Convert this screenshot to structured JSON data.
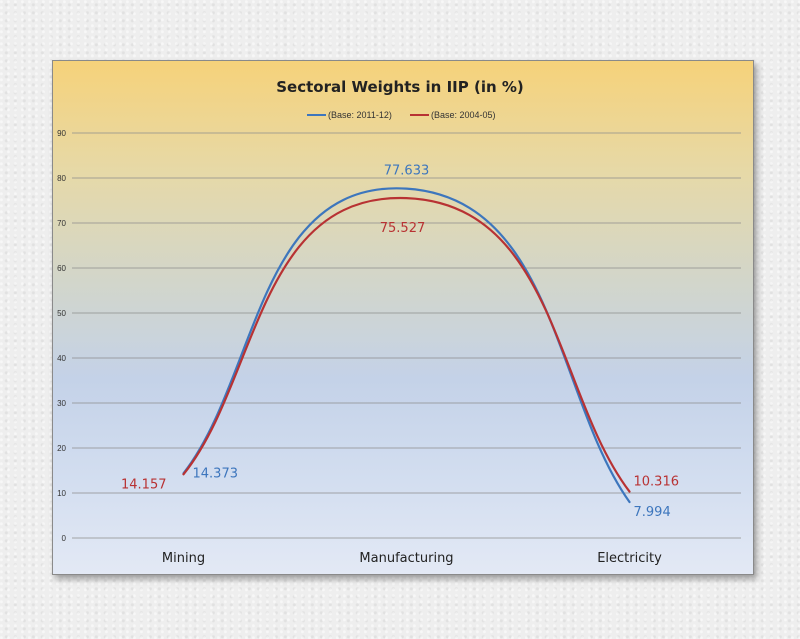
{
  "chart_data": {
    "type": "line",
    "title": "Sectoral Weights in IIP (in %)",
    "categories": [
      "Mining",
      "Manufacturing",
      "Electricity"
    ],
    "series": [
      {
        "name": "(Base: 2011-12)",
        "values": [
          14.373,
          77.633,
          7.994
        ],
        "color": "#3d76bd"
      },
      {
        "name": "(Base: 2004-05)",
        "values": [
          14.157,
          75.527,
          10.316
        ],
        "color": "#b83233"
      }
    ],
    "data_labels": [
      [
        "14.373",
        "77.633",
        "7.994"
      ],
      [
        "14.157",
        "75.527",
        "10.316"
      ]
    ],
    "yticks": [
      "0",
      "10",
      "20",
      "30",
      "40",
      "50",
      "60",
      "70",
      "80",
      "90"
    ],
    "ylim": [
      0,
      90
    ],
    "grid": true,
    "smooth": true,
    "legend_position": "top"
  }
}
